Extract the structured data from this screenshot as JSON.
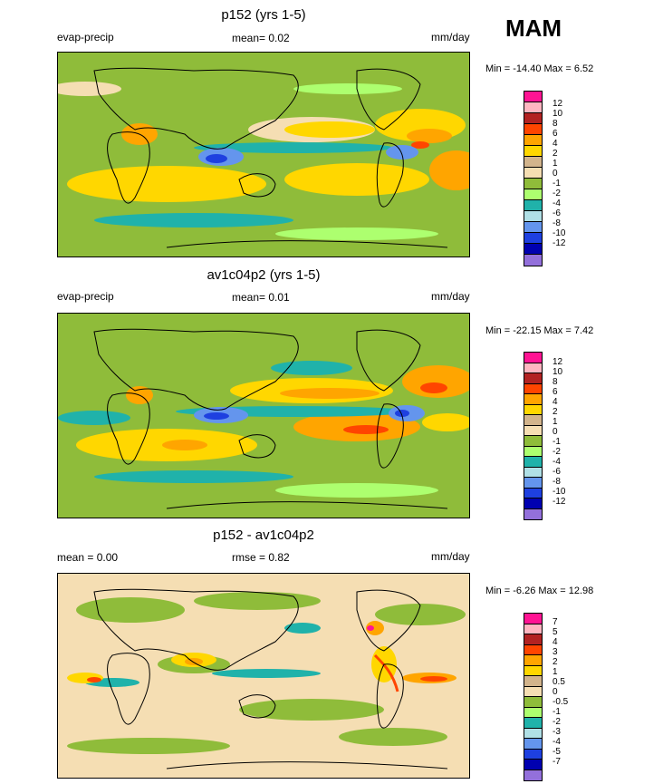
{
  "season": "MAM",
  "palette": {
    "pos12": "#ff1493",
    "pos10": "#ffb6c1",
    "pos8": "#b22222",
    "pos6": "#ff4500",
    "pos4": "#ffa500",
    "pos2": "#ffd700",
    "pos1": "#d2b48c",
    "zero": "#f5deb3",
    "neg1": "#8fbc3a",
    "neg2": "#adff6f",
    "neg4": "#20b2aa",
    "neg6": "#b0e0e6",
    "neg8": "#6495ed",
    "neg10": "#1e40e0",
    "neg12": "#0000b0",
    "neg14": "#9370db"
  },
  "panels": [
    {
      "title": "p152 (yrs 1-5)",
      "left_label": "evap-precip",
      "center_label": "mean=  0.02",
      "units": "mm/day",
      "minmax": "Min = -14.40 Max =   6.52",
      "colorbar_labels": [
        "12",
        "10",
        "8",
        "6",
        "4",
        "2",
        "1",
        "0",
        "-1",
        "-2",
        "-4",
        "-6",
        "-8",
        "-10",
        "-12"
      ]
    },
    {
      "title": "av1c04p2 (yrs 1-5)",
      "left_label": "evap-precip",
      "center_label": "mean=  0.01",
      "units": "mm/day",
      "minmax": "Min = -22.15 Max =   7.42",
      "colorbar_labels": [
        "12",
        "10",
        "8",
        "6",
        "4",
        "2",
        "1",
        "0",
        "-1",
        "-2",
        "-4",
        "-6",
        "-8",
        "-10",
        "-12"
      ]
    },
    {
      "title": "p152 - av1c04p2",
      "left_label": "mean =   0.00",
      "center_label": "rmse =   0.82",
      "units": "mm/day",
      "minmax": "Min =  -6.26 Max =  12.98",
      "colorbar_labels": [
        "7",
        "5",
        "4",
        "3",
        "2",
        "1",
        "0.5",
        "0",
        "-0.5",
        "-1",
        "-2",
        "-3",
        "-4",
        "-5",
        "-7"
      ]
    }
  ]
}
